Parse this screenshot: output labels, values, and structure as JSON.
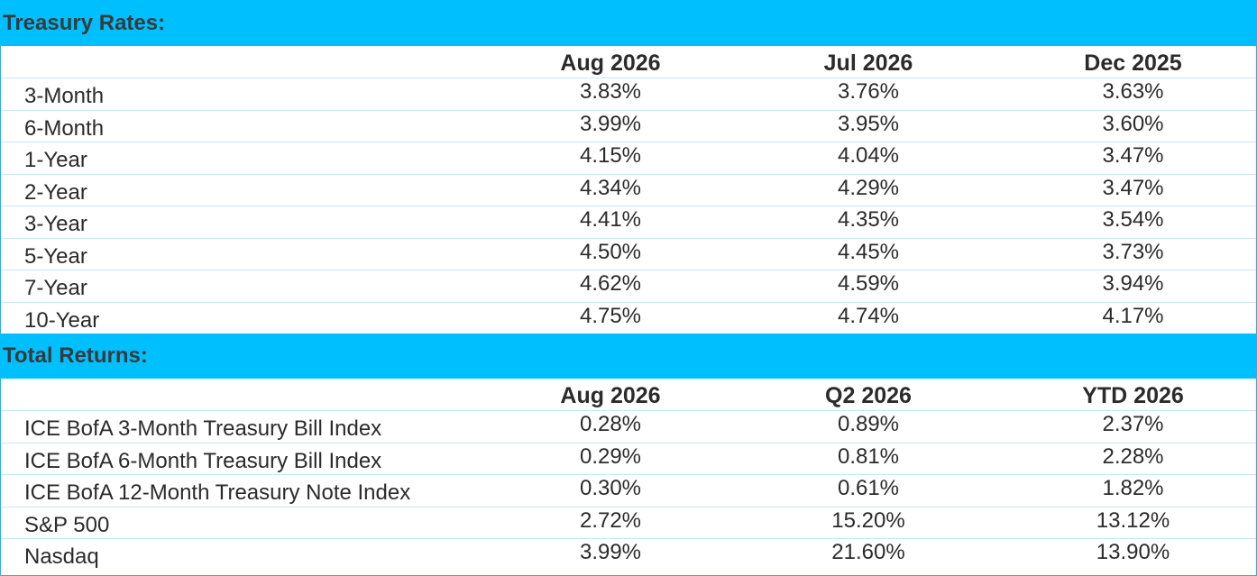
{
  "treasury": {
    "title": "Treasury Rates:",
    "headers": [
      "",
      "Aug 2026",
      "Jul 2026",
      "Dec 2025"
    ],
    "rows": [
      [
        "3-Month",
        "3.83%",
        "3.76%",
        "3.63%"
      ],
      [
        "6-Month",
        "3.99%",
        "3.95%",
        "3.60%"
      ],
      [
        "1-Year",
        "4.15%",
        "4.04%",
        "3.47%"
      ],
      [
        "2-Year",
        "4.34%",
        "4.29%",
        "3.47%"
      ],
      [
        "3-Year",
        "4.41%",
        "4.35%",
        "3.54%"
      ],
      [
        "5-Year",
        "4.50%",
        "4.45%",
        "3.73%"
      ],
      [
        "7-Year",
        "4.62%",
        "4.59%",
        "3.94%"
      ],
      [
        "10-Year",
        "4.75%",
        "4.74%",
        "4.17%"
      ]
    ]
  },
  "returns": {
    "title": "Total Returns:",
    "headers": [
      "",
      "Aug 2026",
      "Q2 2026",
      "YTD 2026"
    ],
    "rows": [
      [
        "ICE BofA 3-Month Treasury Bill Index",
        "0.28%",
        "0.89%",
        "2.37%"
      ],
      [
        "ICE BofA 6-Month Treasury Bill Index",
        "0.29%",
        "0.81%",
        "2.28%"
      ],
      [
        "ICE BofA 12-Month Treasury Note Index",
        "0.30%",
        "0.61%",
        "1.82%"
      ],
      [
        "S&P 500",
        "2.72%",
        "15.20%",
        "13.12%"
      ],
      [
        "Nasdaq",
        "3.99%",
        "21.60%",
        "13.90%"
      ]
    ]
  }
}
